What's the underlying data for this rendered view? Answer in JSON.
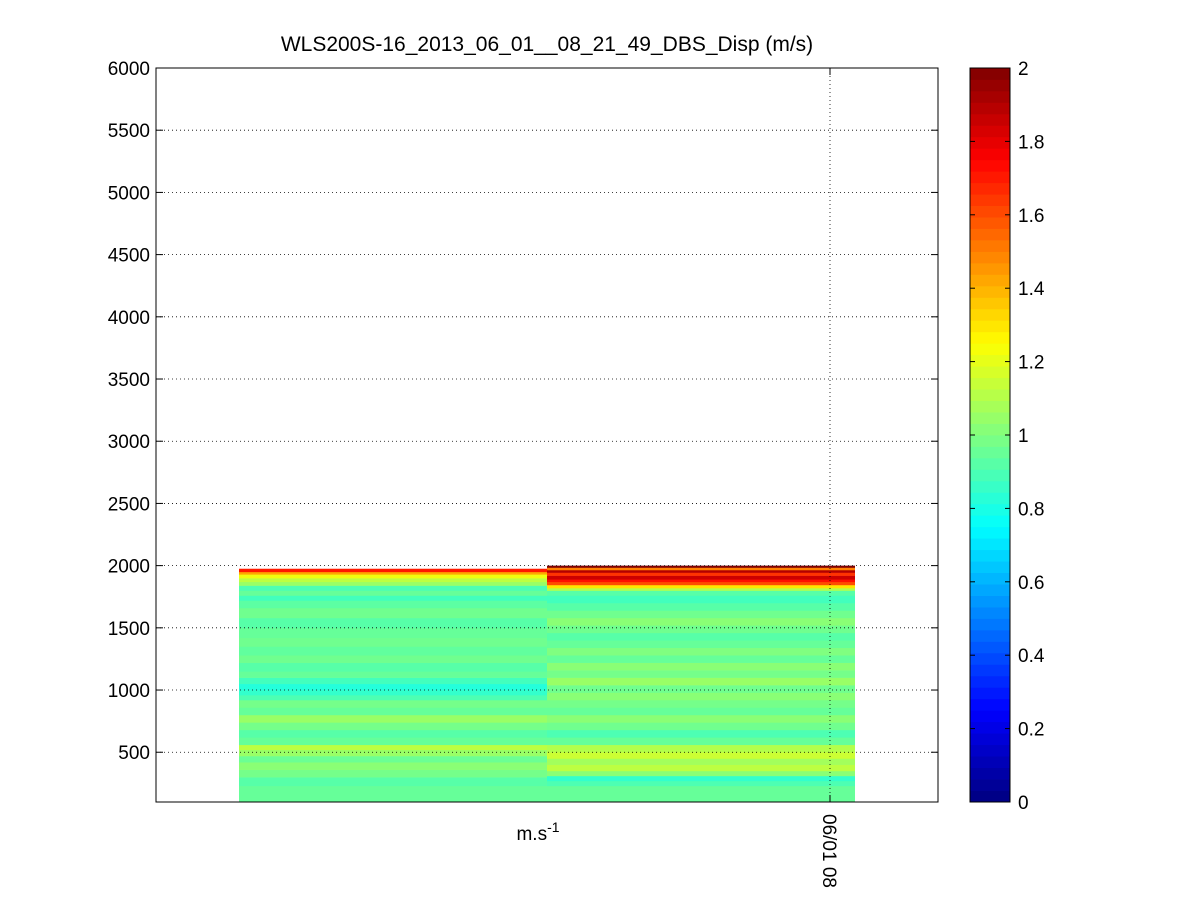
{
  "chart_data": {
    "type": "heatmap",
    "title": "WLS200S-16_2013_06_01__08_21_49_DBS_Disp (m/s)",
    "xlabel": "m.s",
    "xlabel_superscript": "-1",
    "ylabel": "",
    "ylim": [
      100,
      6000
    ],
    "y_ticks": [
      500,
      1000,
      1500,
      2000,
      2500,
      3000,
      3500,
      4000,
      4500,
      5000,
      5500,
      6000
    ],
    "x_tick_label": "06/01 08",
    "grid": true,
    "colormap": "jet",
    "color_range": [
      0,
      2
    ],
    "colorbar_ticks": [
      0,
      0.2,
      0.4,
      0.6,
      0.8,
      1,
      1.2,
      1.4,
      1.6,
      1.8,
      2
    ],
    "columns": [
      {
        "top": 1975,
        "bands": [
          {
            "y0": 100,
            "y1": 230,
            "value": 0.95
          },
          {
            "y0": 230,
            "y1": 300,
            "value": 0.92
          },
          {
            "y0": 300,
            "y1": 360,
            "value": 0.98
          },
          {
            "y0": 360,
            "y1": 420,
            "value": 1.02
          },
          {
            "y0": 420,
            "y1": 470,
            "value": 0.96
          },
          {
            "y0": 470,
            "y1": 520,
            "value": 1.05
          },
          {
            "y0": 520,
            "y1": 560,
            "value": 1.12
          },
          {
            "y0": 560,
            "y1": 620,
            "value": 0.95
          },
          {
            "y0": 620,
            "y1": 680,
            "value": 0.92
          },
          {
            "y0": 680,
            "y1": 740,
            "value": 0.98
          },
          {
            "y0": 740,
            "y1": 800,
            "value": 1.05
          },
          {
            "y0": 800,
            "y1": 860,
            "value": 0.95
          },
          {
            "y0": 860,
            "y1": 920,
            "value": 0.98
          },
          {
            "y0": 920,
            "y1": 960,
            "value": 0.9
          },
          {
            "y0": 960,
            "y1": 1000,
            "value": 0.85
          },
          {
            "y0": 1000,
            "y1": 1050,
            "value": 0.82
          },
          {
            "y0": 1050,
            "y1": 1100,
            "value": 0.88
          },
          {
            "y0": 1100,
            "y1": 1150,
            "value": 0.95
          },
          {
            "y0": 1150,
            "y1": 1220,
            "value": 0.92
          },
          {
            "y0": 1220,
            "y1": 1280,
            "value": 0.97
          },
          {
            "y0": 1280,
            "y1": 1350,
            "value": 0.94
          },
          {
            "y0": 1350,
            "y1": 1420,
            "value": 0.97
          },
          {
            "y0": 1420,
            "y1": 1500,
            "value": 0.95
          },
          {
            "y0": 1500,
            "y1": 1580,
            "value": 0.92
          },
          {
            "y0": 1580,
            "y1": 1660,
            "value": 0.97
          },
          {
            "y0": 1660,
            "y1": 1720,
            "value": 0.93
          },
          {
            "y0": 1720,
            "y1": 1760,
            "value": 0.88
          },
          {
            "y0": 1760,
            "y1": 1800,
            "value": 0.95
          },
          {
            "y0": 1800,
            "y1": 1840,
            "value": 0.9
          },
          {
            "y0": 1840,
            "y1": 1870,
            "value": 1.05
          },
          {
            "y0": 1870,
            "y1": 1900,
            "value": 1.12
          },
          {
            "y0": 1900,
            "y1": 1930,
            "value": 1.22
          },
          {
            "y0": 1930,
            "y1": 1950,
            "value": 1.42
          },
          {
            "y0": 1950,
            "y1": 1975,
            "value": 1.7
          }
        ]
      },
      {
        "top": 2000,
        "bands": [
          {
            "y0": 100,
            "y1": 230,
            "value": 0.95
          },
          {
            "y0": 230,
            "y1": 270,
            "value": 0.9
          },
          {
            "y0": 270,
            "y1": 310,
            "value": 0.85
          },
          {
            "y0": 310,
            "y1": 350,
            "value": 1.02
          },
          {
            "y0": 350,
            "y1": 400,
            "value": 1.12
          },
          {
            "y0": 400,
            "y1": 450,
            "value": 1.07
          },
          {
            "y0": 450,
            "y1": 500,
            "value": 1.15
          },
          {
            "y0": 500,
            "y1": 560,
            "value": 1.1
          },
          {
            "y0": 560,
            "y1": 620,
            "value": 0.95
          },
          {
            "y0": 620,
            "y1": 680,
            "value": 0.9
          },
          {
            "y0": 680,
            "y1": 740,
            "value": 0.97
          },
          {
            "y0": 740,
            "y1": 800,
            "value": 1.02
          },
          {
            "y0": 800,
            "y1": 860,
            "value": 0.95
          },
          {
            "y0": 860,
            "y1": 920,
            "value": 0.98
          },
          {
            "y0": 920,
            "y1": 980,
            "value": 1.02
          },
          {
            "y0": 980,
            "y1": 1040,
            "value": 0.97
          },
          {
            "y0": 1040,
            "y1": 1100,
            "value": 1.05
          },
          {
            "y0": 1100,
            "y1": 1160,
            "value": 0.98
          },
          {
            "y0": 1160,
            "y1": 1220,
            "value": 1.02
          },
          {
            "y0": 1220,
            "y1": 1280,
            "value": 0.95
          },
          {
            "y0": 1280,
            "y1": 1340,
            "value": 1.0
          },
          {
            "y0": 1340,
            "y1": 1400,
            "value": 0.95
          },
          {
            "y0": 1400,
            "y1": 1460,
            "value": 0.92
          },
          {
            "y0": 1460,
            "y1": 1520,
            "value": 0.97
          },
          {
            "y0": 1520,
            "y1": 1580,
            "value": 1.02
          },
          {
            "y0": 1580,
            "y1": 1640,
            "value": 0.97
          },
          {
            "y0": 1640,
            "y1": 1700,
            "value": 0.92
          },
          {
            "y0": 1700,
            "y1": 1760,
            "value": 0.88
          },
          {
            "y0": 1760,
            "y1": 1800,
            "value": 0.92
          },
          {
            "y0": 1800,
            "y1": 1820,
            "value": 1.1
          },
          {
            "y0": 1820,
            "y1": 1845,
            "value": 1.3
          },
          {
            "y0": 1845,
            "y1": 1870,
            "value": 1.6
          },
          {
            "y0": 1870,
            "y1": 1890,
            "value": 1.72
          },
          {
            "y0": 1890,
            "y1": 1920,
            "value": 1.85
          },
          {
            "y0": 1920,
            "y1": 1945,
            "value": 1.65
          },
          {
            "y0": 1945,
            "y1": 1965,
            "value": 1.9
          },
          {
            "y0": 1965,
            "y1": 1985,
            "value": 1.5
          },
          {
            "y0": 1985,
            "y1": 2000,
            "value": 2.0
          }
        ]
      }
    ]
  }
}
